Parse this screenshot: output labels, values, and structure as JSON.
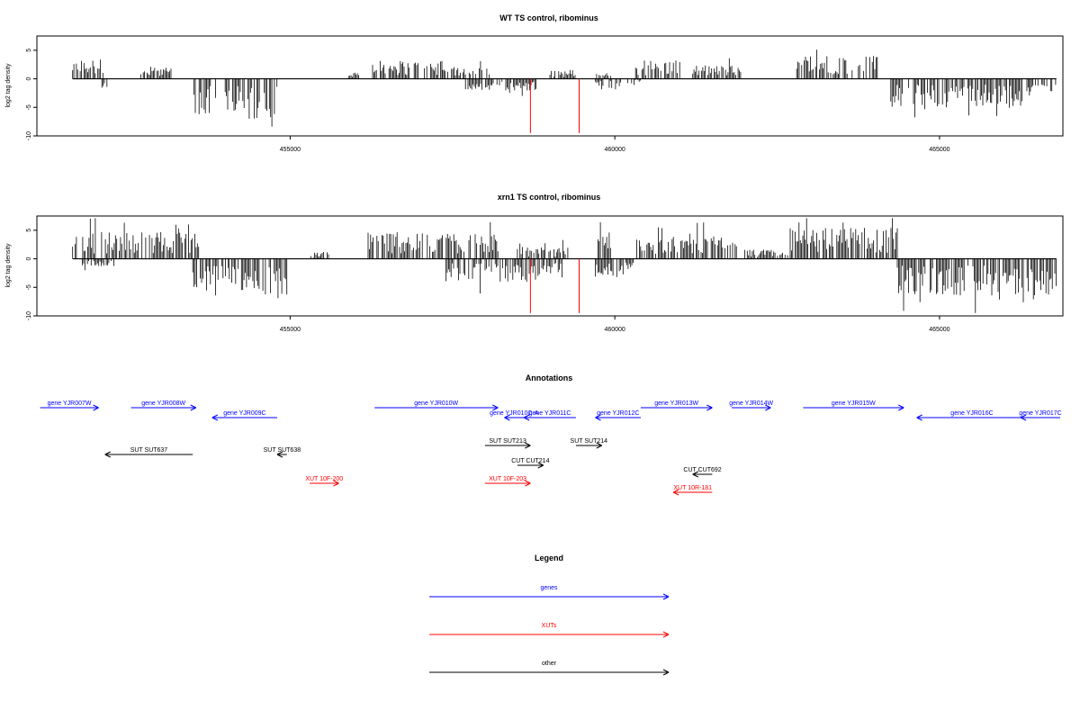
{
  "chart_data": [
    {
      "type": "bar",
      "title": "WT TS control, ribominus",
      "ylabel": "log2 tag density",
      "xlabel": "",
      "xlim": [
        451100,
        466900
      ],
      "ylim": [
        -10,
        7.5
      ],
      "y_ticks": [
        {
          "v": 5,
          "label": "5"
        },
        {
          "v": 0,
          "label": "0"
        },
        {
          "v": -5,
          "label": "-5"
        },
        {
          "v": -10,
          "label": "-10"
        }
      ],
      "x_ticks": [
        {
          "v": 455000,
          "label": "455000"
        },
        {
          "v": 460000,
          "label": "460000"
        },
        {
          "v": 465000,
          "label": "465000"
        }
      ],
      "markers": [
        {
          "x": 458700,
          "y": -9.5
        },
        {
          "x": 459450,
          "y": -9.5
        }
      ],
      "marker_color": "#ff0000",
      "positive_segments": [
        {
          "start": 451650,
          "end": 452150,
          "avg": 2.2
        },
        {
          "start": 452700,
          "end": 453200,
          "avg": 1.2
        },
        {
          "start": 455900,
          "end": 456100,
          "avg": 0.8
        },
        {
          "start": 456250,
          "end": 457350,
          "avg": 2.0
        },
        {
          "start": 457350,
          "end": 458100,
          "avg": 1.3
        },
        {
          "start": 459000,
          "end": 459400,
          "avg": 1.0
        },
        {
          "start": 459700,
          "end": 459950,
          "avg": 0.8
        },
        {
          "start": 460300,
          "end": 461000,
          "avg": 2.0
        },
        {
          "start": 461200,
          "end": 462000,
          "avg": 1.5
        },
        {
          "start": 462800,
          "end": 464050,
          "avg": 2.6
        }
      ],
      "negative_segments": [
        {
          "start": 452100,
          "end": 452200,
          "avg": -1.0
        },
        {
          "start": 453500,
          "end": 453850,
          "avg": -4.0
        },
        {
          "start": 454000,
          "end": 454300,
          "avg": -3.5
        },
        {
          "start": 454350,
          "end": 454800,
          "avg": -4.5
        },
        {
          "start": 457700,
          "end": 458800,
          "avg": -1.3
        },
        {
          "start": 459700,
          "end": 460100,
          "avg": -1.2
        },
        {
          "start": 460200,
          "end": 460400,
          "avg": -0.8
        },
        {
          "start": 464250,
          "end": 466400,
          "avg": -3.2
        },
        {
          "start": 466400,
          "end": 466800,
          "avg": -1.5
        }
      ]
    },
    {
      "type": "bar",
      "title": "xrn1 TS control, ribominus",
      "ylabel": "log2 tag density",
      "xlabel": "",
      "xlim": [
        451100,
        466900
      ],
      "ylim": [
        -10,
        7.5
      ],
      "y_ticks": [
        {
          "v": 5,
          "label": "5"
        },
        {
          "v": 0,
          "label": "0"
        },
        {
          "v": -5,
          "label": "-5"
        },
        {
          "v": -10,
          "label": "-10"
        }
      ],
      "x_ticks": [
        {
          "v": 455000,
          "label": "455000"
        },
        {
          "v": 460000,
          "label": "460000"
        },
        {
          "v": 465000,
          "label": "465000"
        }
      ],
      "markers": [
        {
          "x": 458700,
          "y": -9.5
        },
        {
          "x": 459450,
          "y": -9.5
        }
      ],
      "marker_color": "#ff0000",
      "positive_segments": [
        {
          "start": 451650,
          "end": 453600,
          "avg": 3.0
        },
        {
          "start": 455300,
          "end": 455600,
          "avg": 0.8
        },
        {
          "start": 456200,
          "end": 458200,
          "avg": 3.0
        },
        {
          "start": 458500,
          "end": 459300,
          "avg": 1.3
        },
        {
          "start": 459700,
          "end": 459950,
          "avg": 2.5
        },
        {
          "start": 460300,
          "end": 461900,
          "avg": 2.5
        },
        {
          "start": 462000,
          "end": 462700,
          "avg": 1.0
        },
        {
          "start": 462700,
          "end": 464350,
          "avg": 3.5
        }
      ],
      "negative_segments": [
        {
          "start": 451800,
          "end": 452300,
          "avg": -0.8
        },
        {
          "start": 453500,
          "end": 454200,
          "avg": -4.2
        },
        {
          "start": 454250,
          "end": 454950,
          "avg": -4.0
        },
        {
          "start": 457400,
          "end": 459200,
          "avg": -2.5
        },
        {
          "start": 459700,
          "end": 460300,
          "avg": -2.0
        },
        {
          "start": 464350,
          "end": 466800,
          "avg": -4.0
        }
      ]
    }
  ],
  "annotations": {
    "title": "Annotations",
    "xlim": [
      451100,
      466900
    ],
    "features": [
      {
        "label": "gene YJR007W",
        "class": "gene",
        "strand": "+",
        "start": 451150,
        "end": 452050,
        "lane": 0
      },
      {
        "label": "gene YJR008W",
        "class": "gene",
        "strand": "+",
        "start": 452550,
        "end": 453550,
        "lane": 0
      },
      {
        "label": "gene YJR009C",
        "class": "gene",
        "strand": "-",
        "start": 453800,
        "end": 454800,
        "lane": 1
      },
      {
        "label": "gene YJR010W",
        "class": "gene",
        "strand": "+",
        "start": 456300,
        "end": 458200,
        "lane": 0
      },
      {
        "label": "gene YJR010C-A",
        "class": "gene",
        "strand": "-",
        "start": 458300,
        "end": 458600,
        "lane": 1
      },
      {
        "label": "gene YJR011C",
        "class": "gene",
        "strand": "-",
        "start": 458600,
        "end": 459400,
        "lane": 1
      },
      {
        "label": "gene YJR012C",
        "class": "gene",
        "strand": "-",
        "start": 459700,
        "end": 460400,
        "lane": 1
      },
      {
        "label": "gene YJR013W",
        "class": "gene",
        "strand": "+",
        "start": 460400,
        "end": 461500,
        "lane": 0
      },
      {
        "label": "gene YJR014W",
        "class": "gene",
        "strand": "+",
        "start": 461800,
        "end": 462400,
        "lane": 0
      },
      {
        "label": "gene YJR015W",
        "class": "gene",
        "strand": "+",
        "start": 462900,
        "end": 464450,
        "lane": 0
      },
      {
        "label": "gene YJR016C",
        "class": "gene",
        "strand": "-",
        "start": 464650,
        "end": 466350,
        "lane": 1
      },
      {
        "label": "gene YJR017C",
        "class": "gene",
        "strand": "-",
        "start": 466250,
        "end": 466900,
        "lane": 1
      },
      {
        "label": "SUT SUT637",
        "class": "other",
        "strand": "-",
        "start": 452150,
        "end": 453500,
        "lane": 2
      },
      {
        "label": "SUT SUT638",
        "class": "other",
        "strand": "-",
        "start": 454800,
        "end": 454950,
        "lane": 2
      },
      {
        "label": "SUT SUT213",
        "class": "other",
        "strand": "+",
        "start": 458000,
        "end": 458700,
        "lane": 3
      },
      {
        "label": "SUT SUT214",
        "class": "other",
        "strand": "+",
        "start": 459400,
        "end": 459800,
        "lane": 3
      },
      {
        "label": "CUT CUT214",
        "class": "other",
        "strand": "+",
        "start": 458500,
        "end": 458900,
        "lane": 4
      },
      {
        "label": "CUT CUT692",
        "class": "other",
        "strand": "-",
        "start": 461200,
        "end": 461500,
        "lane": 5
      },
      {
        "label": "XUT 10F-200",
        "class": "xut",
        "strand": "+",
        "start": 455300,
        "end": 455750,
        "lane": 6
      },
      {
        "label": "XUT 10F-203",
        "class": "xut",
        "strand": "+",
        "start": 458000,
        "end": 458700,
        "lane": 6
      },
      {
        "label": "XUT 10R-181",
        "class": "xut",
        "strand": "-",
        "start": 460900,
        "end": 461500,
        "lane": 7
      }
    ],
    "colors": {
      "gene": "#0000ff",
      "xut": "#ff0000",
      "other": "#000000"
    }
  },
  "legend": {
    "title": "Legend",
    "items": [
      {
        "label": "genes",
        "class": "gene"
      },
      {
        "label": "XUTs",
        "class": "xut"
      },
      {
        "label": "other",
        "class": "other"
      }
    ]
  }
}
